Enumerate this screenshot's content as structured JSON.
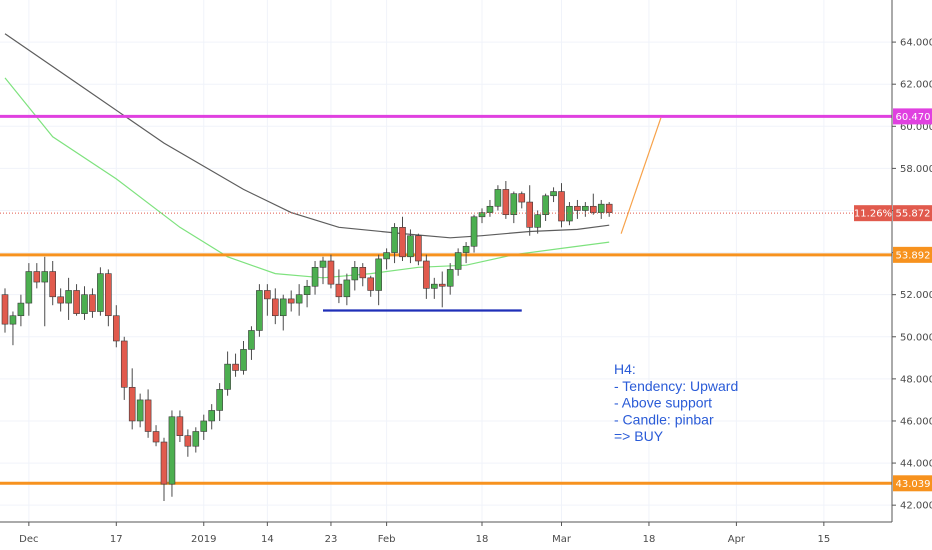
{
  "chart_data": {
    "type": "candlestick",
    "title": "",
    "ylim": [
      41.2,
      66.0
    ],
    "y_ticks": [
      "42.000",
      "44.000",
      "46.000",
      "48.000",
      "50.000",
      "52.000",
      "54.000",
      "56.000",
      "58.000",
      "60.000",
      "62.000",
      "64.000"
    ],
    "x_ticks": [
      {
        "label": "Dec",
        "i": 3
      },
      {
        "label": "17",
        "i": 14
      },
      {
        "label": "2019",
        "i": 25
      },
      {
        "label": "14",
        "i": 33
      },
      {
        "label": "23",
        "i": 41
      },
      {
        "label": "Feb",
        "i": 48
      },
      {
        "label": "18",
        "i": 60
      },
      {
        "label": "Mar",
        "i": 70
      },
      {
        "label": "18",
        "i": 81
      },
      {
        "label": "Apr",
        "i": 92
      },
      {
        "label": "15",
        "i": 103
      }
    ],
    "candles": [
      [
        52.0,
        52.3,
        50.2,
        50.6
      ],
      [
        50.6,
        51.2,
        49.6,
        51.0
      ],
      [
        51.0,
        52.0,
        50.5,
        51.6
      ],
      [
        51.6,
        53.5,
        51.0,
        53.1
      ],
      [
        53.1,
        53.5,
        52.3,
        52.6
      ],
      [
        52.6,
        53.8,
        50.5,
        53.1
      ],
      [
        53.1,
        53.6,
        51.5,
        51.9
      ],
      [
        51.9,
        52.3,
        51.2,
        51.6
      ],
      [
        51.6,
        52.8,
        50.8,
        52.2
      ],
      [
        52.2,
        52.5,
        51.0,
        51.1
      ],
      [
        51.1,
        52.4,
        50.8,
        52.0
      ],
      [
        52.0,
        52.3,
        50.9,
        51.2
      ],
      [
        51.2,
        53.3,
        51.0,
        53.0
      ],
      [
        53.0,
        53.2,
        50.5,
        51.0
      ],
      [
        51.0,
        51.5,
        49.5,
        49.8
      ],
      [
        49.8,
        50.0,
        47.0,
        47.6
      ],
      [
        47.6,
        48.5,
        45.6,
        46.0
      ],
      [
        46.0,
        47.3,
        45.7,
        47.0
      ],
      [
        47.0,
        47.5,
        45.2,
        45.5
      ],
      [
        45.5,
        45.8,
        44.8,
        45.0
      ],
      [
        45.0,
        45.2,
        42.2,
        43.0
      ],
      [
        43.0,
        46.5,
        42.4,
        46.2
      ],
      [
        46.2,
        46.5,
        45.0,
        45.3
      ],
      [
        45.3,
        45.6,
        44.3,
        44.8
      ],
      [
        44.8,
        45.7,
        44.5,
        45.5
      ],
      [
        45.5,
        46.3,
        45.1,
        46.0
      ],
      [
        46.0,
        46.8,
        45.6,
        46.5
      ],
      [
        46.5,
        47.8,
        46.0,
        47.5
      ],
      [
        47.5,
        49.3,
        47.2,
        48.7
      ],
      [
        48.7,
        49.2,
        48.1,
        48.4
      ],
      [
        48.4,
        49.8,
        48.2,
        49.4
      ],
      [
        49.4,
        50.5,
        48.9,
        50.3
      ],
      [
        50.3,
        52.5,
        50.0,
        52.2
      ],
      [
        52.2,
        52.5,
        51.0,
        51.8
      ],
      [
        51.8,
        52.3,
        50.6,
        51.0
      ],
      [
        51.0,
        52.0,
        50.3,
        51.8
      ],
      [
        51.8,
        52.2,
        51.2,
        51.6
      ],
      [
        51.6,
        52.5,
        51.0,
        52.0
      ],
      [
        52.0,
        52.7,
        51.4,
        52.4
      ],
      [
        52.4,
        53.6,
        52.0,
        53.3
      ],
      [
        53.3,
        53.8,
        52.5,
        53.6
      ],
      [
        53.6,
        53.9,
        52.3,
        52.5
      ],
      [
        52.5,
        53.2,
        51.6,
        51.9
      ],
      [
        51.9,
        53.0,
        51.5,
        52.7
      ],
      [
        52.7,
        53.6,
        52.2,
        53.3
      ],
      [
        53.3,
        53.5,
        52.4,
        52.8
      ],
      [
        52.8,
        52.9,
        51.9,
        52.2
      ],
      [
        52.2,
        53.9,
        51.5,
        53.7
      ],
      [
        53.7,
        54.2,
        53.2,
        54.0
      ],
      [
        54.0,
        55.4,
        53.5,
        55.2
      ],
      [
        55.2,
        55.7,
        53.6,
        53.8
      ],
      [
        53.8,
        55.1,
        53.5,
        54.8
      ],
      [
        54.8,
        54.9,
        53.4,
        53.6
      ],
      [
        53.6,
        53.9,
        51.8,
        52.3
      ],
      [
        52.3,
        52.8,
        51.8,
        52.5
      ],
      [
        52.5,
        53.1,
        51.4,
        52.4
      ],
      [
        52.4,
        53.5,
        52.0,
        53.2
      ],
      [
        53.2,
        54.2,
        52.9,
        54.0
      ],
      [
        54.0,
        54.5,
        53.5,
        54.3
      ],
      [
        54.3,
        55.8,
        54.0,
        55.7
      ],
      [
        55.7,
        56.1,
        55.4,
        55.9
      ],
      [
        55.9,
        56.5,
        55.7,
        56.2
      ],
      [
        56.2,
        57.2,
        56.0,
        57.0
      ],
      [
        57.0,
        57.4,
        55.6,
        55.8
      ],
      [
        55.8,
        56.9,
        55.4,
        56.8
      ],
      [
        56.8,
        56.9,
        56.1,
        56.4
      ],
      [
        56.4,
        57.2,
        54.8,
        55.2
      ],
      [
        55.2,
        56.0,
        54.9,
        55.8
      ],
      [
        55.8,
        56.8,
        55.5,
        56.7
      ],
      [
        56.7,
        57.1,
        56.4,
        56.9
      ],
      [
        56.9,
        57.3,
        55.2,
        55.5
      ],
      [
        55.5,
        56.4,
        55.3,
        56.2
      ],
      [
        56.2,
        56.5,
        55.6,
        56.0
      ],
      [
        56.0,
        56.4,
        55.7,
        56.2
      ],
      [
        56.2,
        56.8,
        55.8,
        55.9
      ],
      [
        55.9,
        56.5,
        55.6,
        56.3
      ],
      [
        56.3,
        56.4,
        55.7,
        55.9
      ]
    ],
    "moving_averages": [
      {
        "color": "#5d5d5d",
        "points": [
          [
            0,
            64.4
          ],
          [
            10,
            61.8
          ],
          [
            20,
            59.2
          ],
          [
            30,
            57.0
          ],
          [
            36,
            55.9
          ],
          [
            42,
            55.2
          ],
          [
            50,
            54.9
          ],
          [
            56,
            54.7
          ],
          [
            60,
            54.8
          ],
          [
            66,
            55.0
          ],
          [
            72,
            55.1
          ],
          [
            76,
            55.3
          ]
        ]
      },
      {
        "color": "#7ee27e",
        "points": [
          [
            0,
            62.3
          ],
          [
            6,
            59.5
          ],
          [
            14,
            57.5
          ],
          [
            22,
            55.2
          ],
          [
            28,
            53.8
          ],
          [
            34,
            53.0
          ],
          [
            40,
            52.8
          ],
          [
            46,
            53.0
          ],
          [
            52,
            53.3
          ],
          [
            58,
            53.4
          ],
          [
            64,
            53.9
          ],
          [
            70,
            54.2
          ],
          [
            76,
            54.5
          ]
        ]
      }
    ],
    "levels": [
      {
        "label": "60.470",
        "value": 60.47,
        "color": "#e040e0"
      },
      {
        "label": "53.892",
        "value": 53.892,
        "color": "#f7921e"
      },
      {
        "label": "43.039",
        "value": 43.039,
        "color": "#f7921e"
      }
    ],
    "support_segment": {
      "i_start": 40,
      "i_end": 65,
      "value": 51.25,
      "color": "#1f2fb8"
    },
    "projection": {
      "color": "#f7a24a",
      "points": [
        [
          77.5,
          54.9
        ],
        [
          82.5,
          60.4
        ]
      ]
    },
    "last_price": {
      "label": "55.872",
      "value": 55.872,
      "change_label": "11.26%",
      "color": "#e15a4d"
    },
    "colors": {
      "up": "#26a69a",
      "down": "#e15a4d",
      "up_bright": "#4caf50"
    }
  },
  "annotation": {
    "lines": [
      "H4:",
      "- Tendency: Upward",
      "- Above support",
      "- Candle: pinbar",
      "=> BUY"
    ]
  }
}
